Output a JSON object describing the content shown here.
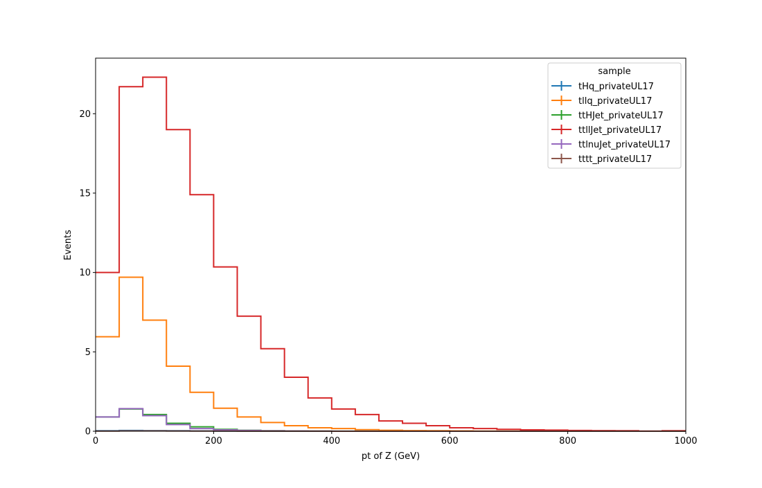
{
  "chart_data": {
    "type": "histogram",
    "xlabel": "pt of Z (GeV)",
    "ylabel": "Events",
    "xlim": [
      0,
      1000
    ],
    "ylim": [
      0,
      23.5
    ],
    "x_ticks": [
      0,
      200,
      400,
      600,
      800,
      1000
    ],
    "y_ticks": [
      0,
      5,
      10,
      15,
      20
    ],
    "grid": false,
    "legend_title": "sample",
    "legend_position": "top-right",
    "bin_width": 40,
    "bin_edges": [
      0,
      40,
      80,
      120,
      160,
      200,
      240,
      280,
      320,
      360,
      400,
      440,
      480,
      520,
      560,
      600,
      640,
      680,
      720,
      760,
      800,
      840,
      880,
      920,
      960,
      1000
    ],
    "series": [
      {
        "name": "tHq_privateUL17",
        "color": "#1f77b4",
        "values": [
          0.03,
          0.05,
          0.04,
          0.03,
          0.02,
          0.01,
          0.01,
          0.005,
          0.003,
          0.002,
          0.001,
          0.001,
          0,
          0,
          0,
          0,
          0,
          0,
          0,
          0,
          0,
          0,
          0,
          0,
          0
        ]
      },
      {
        "name": "tllq_privateUL17",
        "color": "#ff7f0e",
        "values": [
          5.95,
          9.7,
          7.0,
          4.1,
          2.45,
          1.45,
          0.9,
          0.55,
          0.35,
          0.22,
          0.17,
          0.1,
          0.06,
          0.04,
          0.03,
          0.02,
          0.01,
          0.01,
          0.005,
          0.003,
          0.002,
          0.001,
          0,
          0,
          0
        ]
      },
      {
        "name": "ttHJet_privateUL17",
        "color": "#2ca02c",
        "values": [
          0.9,
          1.4,
          1.05,
          0.5,
          0.28,
          0.12,
          0.06,
          0.03,
          0.015,
          0.01,
          0.005,
          0.003,
          0.002,
          0.001,
          0,
          0,
          0,
          0,
          0,
          0,
          0,
          0,
          0,
          0,
          0
        ]
      },
      {
        "name": "ttllJet_privateUL17",
        "color": "#d62728",
        "values": [
          10.0,
          21.7,
          22.3,
          19.0,
          14.9,
          10.35,
          7.25,
          5.2,
          3.4,
          2.1,
          1.4,
          1.05,
          0.65,
          0.5,
          0.35,
          0.22,
          0.17,
          0.12,
          0.09,
          0.07,
          0.05,
          0.04,
          0.03,
          0.01,
          0.03
        ]
      },
      {
        "name": "ttlnuJet_privateUL17",
        "color": "#9467bd",
        "values": [
          0.9,
          1.42,
          0.98,
          0.42,
          0.17,
          0.09,
          0.05,
          0.025,
          0.015,
          0.01,
          0.005,
          0.003,
          0.002,
          0.001,
          0,
          0,
          0,
          0,
          0,
          0,
          0,
          0,
          0,
          0,
          0
        ]
      },
      {
        "name": "tttt_privateUL17",
        "color": "#8c564b",
        "values": [
          0.01,
          0.02,
          0.02,
          0.015,
          0.012,
          0.01,
          0.008,
          0.006,
          0.004,
          0.003,
          0.002,
          0.002,
          0.001,
          0.001,
          0.001,
          0,
          0,
          0,
          0,
          0,
          0,
          0,
          0,
          0,
          0
        ]
      }
    ]
  }
}
